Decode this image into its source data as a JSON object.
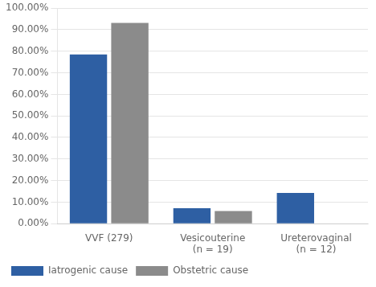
{
  "chart_data": {
    "type": "bar",
    "categories": [
      "VVF (279)",
      "Vesicouterine\n(n = 19)",
      "Ureterovaginal\n(n = 12)"
    ],
    "series": [
      {
        "name": "Iatrogenic cause",
        "color": "#2E5FA3",
        "values": [
          78.57,
          7.14,
          14.29
        ]
      },
      {
        "name": "Obstetric cause",
        "color": "#8B8B8B",
        "values": [
          93.19,
          5.88,
          0.0
        ]
      }
    ],
    "ylim": [
      0,
      100
    ],
    "yticks": [
      {
        "value": 0,
        "label": "0.00%"
      },
      {
        "value": 10,
        "label": "10.00%"
      },
      {
        "value": 20,
        "label": "20.00%"
      },
      {
        "value": 30,
        "label": "30.00%"
      },
      {
        "value": 40,
        "label": "40.00%"
      },
      {
        "value": 50,
        "label": "50.00%"
      },
      {
        "value": 60,
        "label": "60.00%"
      },
      {
        "value": 70,
        "label": "70.00%"
      },
      {
        "value": 80,
        "label": "80.00%"
      },
      {
        "value": 90,
        "label": "90.00%"
      },
      {
        "value": 100,
        "label": "100.00%"
      }
    ],
    "grid": true,
    "legend": "bottom"
  }
}
